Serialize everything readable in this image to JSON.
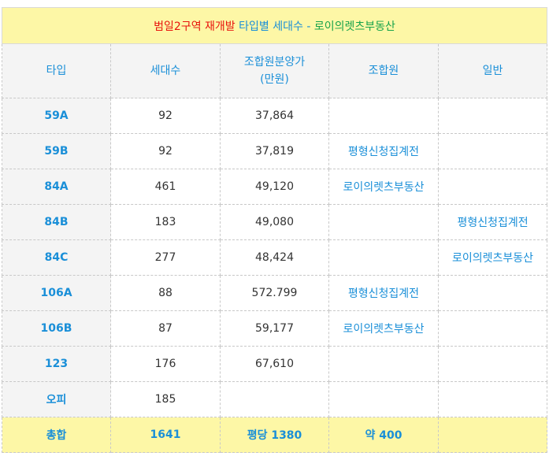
{
  "title": {
    "part_red": "범일2구역 재개발",
    "part_blue": "타입별 세대수",
    "part_sep": " - ",
    "part_green": "로이의렛츠부동산"
  },
  "headers": [
    "타입",
    "세대수",
    "조합원분양가",
    "(만원)",
    "조합원",
    "일반"
  ],
  "rows": [
    {
      "type": "59A",
      "units": "92",
      "price": "37,864",
      "member": "",
      "general": ""
    },
    {
      "type": "59B",
      "units": "92",
      "price": "37,819",
      "member": "평형신청집계전",
      "general": ""
    },
    {
      "type": "84A",
      "units": "461",
      "price": "49,120",
      "member": "로이의렛츠부동산",
      "general": ""
    },
    {
      "type": "84B",
      "units": "183",
      "price": "49,080",
      "member": "",
      "general": "평형신청집계전"
    },
    {
      "type": "84C",
      "units": "277",
      "price": "48,424",
      "member": "",
      "general": "로이의렛츠부동산"
    },
    {
      "type": "106A",
      "units": "88",
      "price": "572.799",
      "member": "평형신청집계전",
      "general": ""
    },
    {
      "type": "106B",
      "units": "87",
      "price": "59,177",
      "member": "로이의렛츠부동산",
      "general": ""
    },
    {
      "type": "123",
      "units": "176",
      "price": "67,610",
      "member": "",
      "general": ""
    },
    {
      "type": "오피",
      "units": "185",
      "price": "",
      "member": "",
      "general": ""
    }
  ],
  "total": {
    "label": "총합",
    "units": "1641",
    "price": "평당 1380",
    "member": "약 400",
    "general": ""
  },
  "colors": {
    "title_bg": "#fdf7a6",
    "header_bg": "#f4f4f4",
    "accent_blue": "#1a8fd8",
    "red": "#e8140c",
    "green": "#16a34a"
  }
}
